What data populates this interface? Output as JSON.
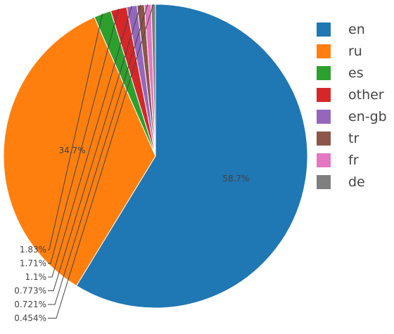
{
  "chart_data": {
    "type": "pie",
    "categories": [
      "en",
      "ru",
      "es",
      "other",
      "en-gb",
      "tr",
      "fr",
      "de"
    ],
    "values": [
      58.7,
      34.7,
      1.83,
      1.71,
      1.1,
      0.773,
      0.721,
      0.454
    ],
    "labels": [
      "58.7%",
      "34.7%",
      "1.83%",
      "1.71%",
      "1.1%",
      "0.773%",
      "0.721%",
      "0.454%"
    ],
    "colors": [
      "#1f77b4",
      "#ff7f0e",
      "#2ca02c",
      "#d62728",
      "#9467bd",
      "#8c564b",
      "#e377c2",
      "#7f7f7f"
    ],
    "direction": "clockwise",
    "start": "top",
    "legend_position": "right"
  }
}
